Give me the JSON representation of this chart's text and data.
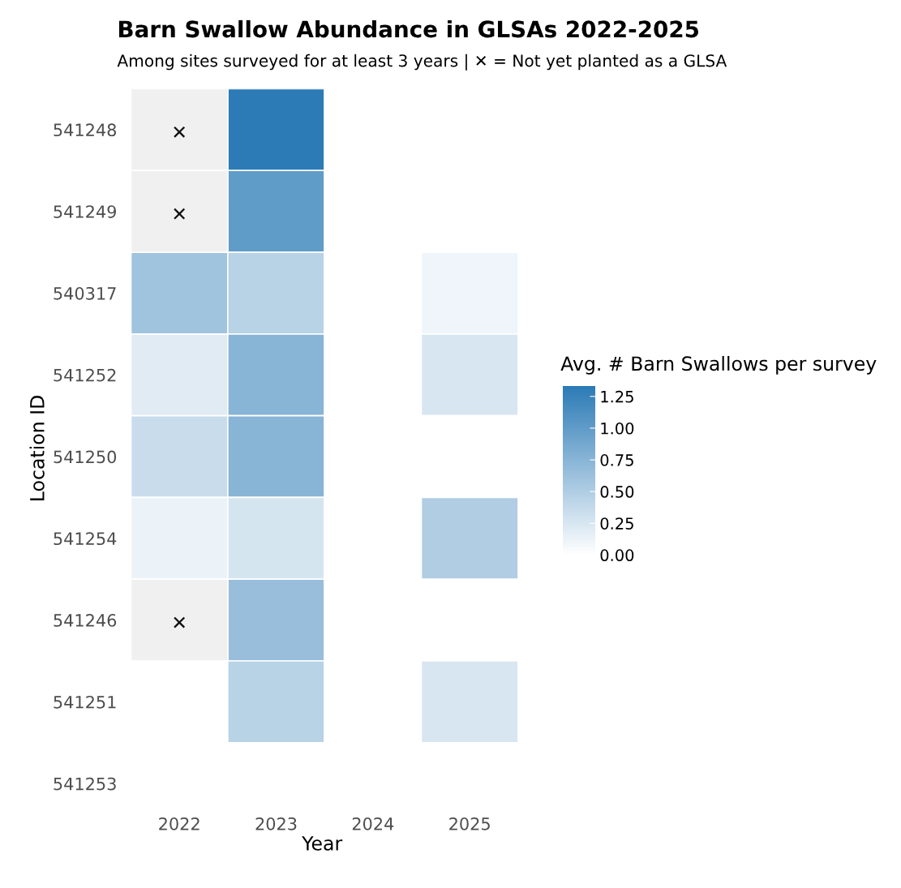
{
  "chart_data": {
    "type": "heatmap",
    "title": "Barn Swallow Abundance in GLSAs 2022-2025",
    "subtitle": "Among sites surveyed for at least 3 years | ✕ = Not yet planted as a GLSA",
    "xlabel": "Year",
    "ylabel": "Location ID",
    "clabel": "Avg. # Barn Swallows per survey",
    "categories": [
      "2022",
      "2023",
      "2024",
      "2025"
    ],
    "y_categories": [
      "541248",
      "541249",
      "540317",
      "541252",
      "541250",
      "541254",
      "541246",
      "541251",
      "541253"
    ],
    "cells": [
      [
        null,
        1.33,
        null,
        null
      ],
      [
        null,
        1.0,
        null,
        null
      ],
      [
        0.6,
        0.45,
        null,
        0.1
      ],
      [
        0.2,
        0.75,
        null,
        0.25
      ],
      [
        0.35,
        0.75,
        null,
        null
      ],
      [
        0.12,
        0.27,
        null,
        0.5
      ],
      [
        null,
        0.65,
        null,
        null
      ],
      [
        null,
        0.45,
        null,
        0.25
      ],
      [
        null,
        null,
        null,
        null
      ]
    ],
    "cell_labels": [
      [
        "✕",
        null,
        null,
        null
      ],
      [
        "✕",
        null,
        null,
        null
      ],
      [
        null,
        null,
        null,
        null
      ],
      [
        null,
        null,
        null,
        null
      ],
      [
        null,
        null,
        null,
        null
      ],
      [
        null,
        null,
        null,
        null
      ],
      [
        "✕",
        null,
        null,
        null
      ],
      [
        null,
        null,
        null,
        null
      ],
      [
        null,
        null,
        null,
        null
      ]
    ],
    "clim": [
      0,
      1.33
    ],
    "cticks": [
      {
        "value": 0,
        "label": "0.00"
      },
      {
        "value": 0.25,
        "label": "0.25"
      },
      {
        "value": 0.5,
        "label": "0.50"
      },
      {
        "value": 0.75,
        "label": "0.75"
      },
      {
        "value": 1.0,
        "label": "1.00"
      },
      {
        "value": 1.25,
        "label": "1.25"
      }
    ],
    "color": "#2c7bb6",
    "grid": false
  }
}
